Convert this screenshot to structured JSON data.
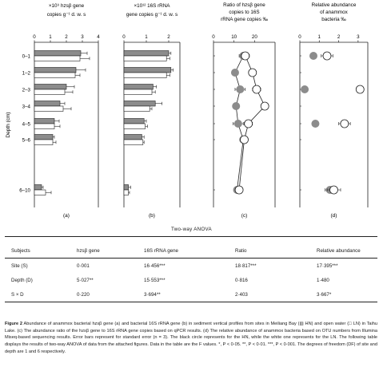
{
  "figure": {
    "panels": [
      {
        "id": "a",
        "title_lines": [
          "×10⁹ hzsβ gene",
          "copies g⁻¹ d. w. s"
        ],
        "axis_ticks": [
          "0",
          "1",
          "2",
          "3",
          "4"
        ],
        "label": "(a)"
      },
      {
        "id": "b",
        "title_lines": [
          "×10¹² 16S rRNA",
          "gene copies g⁻¹ d. w. s"
        ],
        "axis_ticks": [
          "0",
          "1",
          "2"
        ],
        "label": "(b)"
      },
      {
        "id": "c",
        "title_lines": [
          "Ratio of hzsβ gene",
          "copies to 16S",
          "rRNA gene copies ‰"
        ],
        "axis_ticks": [
          "0",
          "10",
          "20"
        ],
        "label": "(c)"
      },
      {
        "id": "d",
        "title_lines": [
          "Relative abundance",
          "of anammox",
          "bacteria ‰"
        ],
        "axis_ticks": [
          "0",
          "1",
          "2",
          "3"
        ],
        "label": "(d)"
      }
    ],
    "depth_ticks": [
      "0–1",
      "1–2",
      "2–3",
      "3–4",
      "4–5",
      "5–6",
      "6–10"
    ],
    "ylabel": "Depth (cm)",
    "colors": {
      "hn": "#8c8c8c",
      "ln": "#ffffff",
      "stroke": "#222222"
    }
  },
  "chart_data": [
    {
      "type": "bar",
      "panel": "a",
      "orientation": "horizontal",
      "categories": [
        "0–1",
        "1–2",
        "2–3",
        "3–4",
        "4–5",
        "5–6",
        "6–10"
      ],
      "xlim": [
        0,
        4
      ],
      "series": [
        {
          "values": [
            2.9,
            2.6,
            2.0,
            1.6,
            1.25,
            1.15,
            0.45
          ],
          "errors": [
            0.4,
            0.6,
            0.5,
            0.3,
            0.3,
            0.1,
            0.1
          ]
        },
        {
          "values": [
            2.85,
            2.55,
            1.9,
            1.8,
            1.25,
            1.15,
            0.7
          ],
          "errors": [
            0.6,
            0.3,
            0.5,
            0.5,
            0.35,
            0.2,
            0.35
          ]
        }
      ]
    },
    {
      "type": "bar",
      "panel": "b",
      "orientation": "horizontal",
      "categories": [
        "0–1",
        "1–2",
        "2–3",
        "3–4",
        "4–5",
        "5–6",
        "6–10"
      ],
      "xlim": [
        0,
        2.5
      ],
      "series": [
        {
          "values": [
            2.0,
            2.1,
            1.3,
            1.4,
            0.9,
            0.8,
            0.2
          ],
          "errors": [
            0.1,
            0.1,
            0.15,
            0.3,
            0.1,
            0.1,
            0.1
          ]
        },
        {
          "values": [
            1.9,
            1.9,
            1.25,
            1.15,
            0.95,
            0.85,
            0.2
          ],
          "errors": [
            0.15,
            0.15,
            0.15,
            0.1,
            0.1,
            0.05,
            0.05
          ]
        }
      ]
    },
    {
      "type": "line",
      "panel": "c",
      "categories": [
        "0–1",
        "1–2",
        "2–3",
        "3–4",
        "4–5",
        "5–6",
        "6–10"
      ],
      "xlim": [
        0,
        30
      ],
      "series": [
        {
          "values": [
            14.5,
            10.5,
            13.0,
            11.0,
            12.0,
            14.5,
            11.5
          ],
          "errors": [
            2.0,
            1.5,
            2.5,
            1.0,
            2.5,
            1.0,
            1.0
          ]
        },
        {
          "values": [
            15.5,
            19.0,
            21.0,
            25.0,
            17.0,
            15.0,
            12.5
          ],
          "errors": [
            2.0,
            1.5,
            2.0,
            1.0,
            2.0,
            1.0,
            1.5
          ]
        }
      ]
    },
    {
      "type": "scatter",
      "panel": "d",
      "categories": [
        "0–1",
        "1–2",
        "2–3",
        "3–4",
        "4–5",
        "5–6",
        "6–10"
      ],
      "xlim": [
        0,
        3.5
      ],
      "series": [
        {
          "values": [
            0.7,
            null,
            0.25,
            null,
            0.8,
            null,
            1.55
          ],
          "errors": [
            0.1,
            null,
            0.1,
            null,
            0.1,
            null,
            0.25
          ]
        },
        {
          "values": [
            1.4,
            null,
            3.1,
            null,
            2.3,
            null,
            1.75
          ],
          "errors": [
            0.3,
            null,
            0.1,
            null,
            0.3,
            null,
            0.35
          ]
        }
      ]
    }
  ],
  "anova": {
    "title": "Two-way ANOVA",
    "headers": [
      "Subjects",
      "hzsβ gene",
      "16S rRNA gene",
      "Ratio",
      "Relative abundance"
    ],
    "rows": [
      [
        "Site (S)",
        "0·001",
        "16·456***",
        "18·817***",
        "17·395***"
      ],
      [
        "Depth (D)",
        "5·027**",
        "15·553***",
        "0·816",
        "1·480"
      ],
      [
        "S × D",
        "0·220",
        "3·694**",
        "2·403",
        "3·667*"
      ]
    ]
  },
  "caption": {
    "label": "Figure 2",
    "text": "Abundance of anammox bacterial hzsβ gene (a) and bacterial 16S rRNA gene (b) in sediment vertical profiles from sites in Meiliang Bay (▥ HN) and open water (□ LN) in Taihu Lake. (c) The abundance ratio of the hzsβ gene to 16S rRNA gene copies based on qPCR results. (d) The relative abundance of anammox bacteria based on OTU numbers from Illumina Miseq-based sequencing results. Error bars represent for standard error (n = 3). The black circle represents for the HN, while the white one represents for the LN. The following table displays the results of two-way ANOVA of data from the attached figures. Data in the table are the F values. *, P < 0·05. **, P < 0·01. ***, P < 0·001. The degrees of freedom (DF) of site and depth are 1 and 6 respectively."
  }
}
